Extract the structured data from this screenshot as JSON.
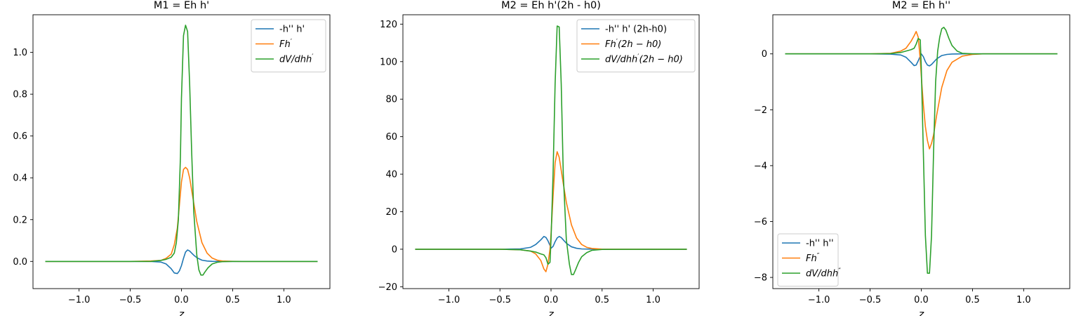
{
  "chart_data": [
    {
      "type": "line",
      "title": "M1 = Eh h'",
      "xlabel": "z",
      "ylabel": "",
      "xlim": [
        -1.45,
        1.45
      ],
      "ylim": [
        -0.13,
        1.18
      ],
      "xticks": [
        -1.0,
        -0.5,
        0.0,
        0.5,
        1.0
      ],
      "xtick_labels": [
        "−1.0",
        "−0.5",
        "0.0",
        "0.5",
        "1.0"
      ],
      "yticks": [
        0.0,
        0.2,
        0.4,
        0.6,
        0.8,
        1.0
      ],
      "ytick_labels": [
        "0.0",
        "0.2",
        "0.4",
        "0.6",
        "0.8",
        "1.0"
      ],
      "grid": false,
      "legend_position": "upper-right",
      "series": [
        {
          "name": "-h'' h'",
          "color": "#1f77b4",
          "x": [
            -1.33,
            -0.5,
            -0.3,
            -0.2,
            -0.15,
            -0.1,
            -0.07,
            -0.04,
            -0.02,
            0.0,
            0.02,
            0.04,
            0.06,
            0.08,
            0.1,
            0.12,
            0.15,
            0.2,
            0.25,
            0.3,
            0.4,
            0.5,
            1.33
          ],
          "y": [
            0,
            0,
            0,
            -0.003,
            -0.012,
            -0.035,
            -0.055,
            -0.058,
            -0.045,
            -0.02,
            0.015,
            0.045,
            0.055,
            0.05,
            0.04,
            0.03,
            0.018,
            0.006,
            0.002,
            0.0005,
            0,
            0,
            0
          ]
        },
        {
          "name": "Fh′",
          "name_display": {
            "base": "Fh",
            "sup": "′",
            "rest": ""
          },
          "color": "#ff7f0e",
          "x": [
            -1.33,
            -0.5,
            -0.3,
            -0.2,
            -0.15,
            -0.1,
            -0.07,
            -0.04,
            -0.02,
            0.0,
            0.02,
            0.04,
            0.06,
            0.08,
            0.1,
            0.12,
            0.15,
            0.2,
            0.25,
            0.3,
            0.35,
            0.4,
            0.5,
            0.6,
            1.33
          ],
          "y": [
            0,
            0,
            0.002,
            0.005,
            0.015,
            0.035,
            0.08,
            0.16,
            0.27,
            0.38,
            0.44,
            0.45,
            0.44,
            0.4,
            0.34,
            0.28,
            0.19,
            0.09,
            0.04,
            0.016,
            0.006,
            0.002,
            0.0005,
            0,
            0
          ]
        },
        {
          "name": "dV/dhh′",
          "name_display": {
            "base": "dV/dhh",
            "sup": "′",
            "rest": ""
          },
          "color": "#2ca02c",
          "x": [
            -1.33,
            -0.5,
            -0.3,
            -0.2,
            -0.15,
            -0.1,
            -0.07,
            -0.05,
            -0.03,
            -0.01,
            0.0,
            0.02,
            0.04,
            0.06,
            0.08,
            0.1,
            0.12,
            0.15,
            0.17,
            0.19,
            0.21,
            0.23,
            0.26,
            0.3,
            0.35,
            0.4,
            0.5,
            1.33
          ],
          "y": [
            0,
            0,
            0,
            0.005,
            0.01,
            0.02,
            0.04,
            0.09,
            0.2,
            0.5,
            0.78,
            1.08,
            1.13,
            1.1,
            0.85,
            0.52,
            0.24,
            0.03,
            -0.04,
            -0.065,
            -0.065,
            -0.05,
            -0.03,
            -0.012,
            -0.004,
            -0.001,
            0,
            0
          ]
        }
      ]
    },
    {
      "type": "line",
      "title": "M2 = Eh h'(2h - h0)",
      "xlabel": "z",
      "ylabel": "",
      "xlim": [
        -1.45,
        1.45
      ],
      "ylim": [
        -21,
        125
      ],
      "xticks": [
        -1.0,
        -0.5,
        0.0,
        0.5,
        1.0
      ],
      "xtick_labels": [
        "−1.0",
        "−0.5",
        "0.0",
        "0.5",
        "1.0"
      ],
      "yticks": [
        -20,
        0,
        20,
        40,
        60,
        80,
        100,
        120
      ],
      "ytick_labels": [
        "−20",
        "0",
        "20",
        "40",
        "60",
        "80",
        "100",
        "120"
      ],
      "grid": false,
      "legend_position": "upper-right",
      "series": [
        {
          "name": "-h'' h' (2h-h0)",
          "color": "#1f77b4",
          "x": [
            -1.33,
            -0.5,
            -0.3,
            -0.2,
            -0.15,
            -0.1,
            -0.07,
            -0.05,
            -0.03,
            -0.01,
            0.0,
            0.02,
            0.04,
            0.06,
            0.08,
            0.1,
            0.12,
            0.15,
            0.2,
            0.25,
            0.3,
            0.4,
            1.33
          ],
          "y": [
            0,
            0,
            0.2,
            1.0,
            2.5,
            5.0,
            6.8,
            6.3,
            4.5,
            2.0,
            0.5,
            1.5,
            4.0,
            6.0,
            6.8,
            6.2,
            5.0,
            3.2,
            1.3,
            0.5,
            0.15,
            0.02,
            0
          ]
        },
        {
          "name": "Fh′(2h − h0)",
          "name_display": {
            "base": "Fh",
            "sup": "′",
            "rest": "(2h − h0)"
          },
          "color": "#ff7f0e",
          "x": [
            -1.33,
            -0.5,
            -0.3,
            -0.2,
            -0.15,
            -0.1,
            -0.07,
            -0.05,
            -0.03,
            -0.01,
            0.0,
            0.02,
            0.04,
            0.06,
            0.08,
            0.1,
            0.12,
            0.15,
            0.2,
            0.25,
            0.3,
            0.35,
            0.4,
            0.5,
            0.6,
            1.33
          ],
          "y": [
            0,
            0,
            -0.3,
            -1.0,
            -2.5,
            -6.0,
            -10.5,
            -12.0,
            -8.0,
            0,
            8.0,
            28.0,
            46.0,
            52.0,
            49.0,
            42.0,
            35.0,
            25.0,
            13.0,
            6.0,
            2.5,
            1.0,
            0.4,
            0.05,
            0,
            0
          ]
        },
        {
          "name": "dV/dhh′(2h − h0)",
          "name_display": {
            "base": "dV/dhh",
            "sup": "′",
            "rest": "(2h − h0)"
          },
          "color": "#2ca02c",
          "x": [
            -1.33,
            -0.5,
            -0.3,
            -0.2,
            -0.15,
            -0.1,
            -0.07,
            -0.05,
            -0.03,
            -0.01,
            0.0,
            0.02,
            0.04,
            0.06,
            0.08,
            0.1,
            0.12,
            0.15,
            0.18,
            0.2,
            0.22,
            0.24,
            0.27,
            0.3,
            0.35,
            0.4,
            0.5,
            1.33
          ],
          "y": [
            0,
            0,
            -0.3,
            -1.0,
            -1.5,
            -2.5,
            -3.0,
            -4.5,
            -8.0,
            -7.0,
            5.0,
            40.0,
            88.0,
            119.0,
            118.5,
            88.0,
            40.0,
            5.0,
            -8.0,
            -13.5,
            -13.5,
            -11.0,
            -7.0,
            -4.0,
            -1.8,
            -0.6,
            -0.1,
            0
          ]
        }
      ]
    },
    {
      "type": "line",
      "title": "M2 = Eh h''",
      "xlabel": "z",
      "ylabel": "",
      "xlim": [
        -1.45,
        1.45
      ],
      "ylim": [
        -8.4,
        1.4
      ],
      "xticks": [
        -1.0,
        -0.5,
        0.0,
        0.5,
        1.0
      ],
      "xtick_labels": [
        "−1.0",
        "−0.5",
        "0.0",
        "0.5",
        "1.0"
      ],
      "yticks": [
        -8,
        -6,
        -4,
        -2,
        0
      ],
      "ytick_labels": [
        "−8",
        "−6",
        "−4",
        "−2",
        "0"
      ],
      "grid": false,
      "legend_position": "lower-left",
      "series": [
        {
          "name": "-h'' h''",
          "color": "#1f77b4",
          "x": [
            -1.33,
            -0.5,
            -0.3,
            -0.2,
            -0.15,
            -0.1,
            -0.07,
            -0.05,
            -0.03,
            -0.01,
            0.0,
            0.02,
            0.04,
            0.06,
            0.08,
            0.1,
            0.12,
            0.15,
            0.2,
            0.25,
            0.3,
            0.4,
            1.33
          ],
          "y": [
            0,
            0,
            -0.01,
            -0.04,
            -0.12,
            -0.3,
            -0.42,
            -0.4,
            -0.25,
            -0.08,
            0,
            -0.1,
            -0.28,
            -0.4,
            -0.43,
            -0.38,
            -0.3,
            -0.18,
            -0.06,
            -0.02,
            -0.005,
            0,
            0
          ]
        },
        {
          "name": "Fh″",
          "name_display": {
            "base": "Fh",
            "sup": "″",
            "rest": ""
          },
          "color": "#ff7f0e",
          "x": [
            -1.33,
            -0.5,
            -0.3,
            -0.2,
            -0.15,
            -0.1,
            -0.07,
            -0.05,
            -0.03,
            -0.01,
            0.0,
            0.02,
            0.04,
            0.06,
            0.08,
            0.1,
            0.12,
            0.15,
            0.2,
            0.25,
            0.3,
            0.4,
            0.5,
            0.6,
            1.33
          ],
          "y": [
            0,
            0,
            0.02,
            0.1,
            0.2,
            0.45,
            0.65,
            0.8,
            0.6,
            -0.2,
            -0.8,
            -1.8,
            -2.6,
            -3.1,
            -3.4,
            -3.2,
            -2.9,
            -2.2,
            -1.2,
            -0.6,
            -0.3,
            -0.08,
            -0.02,
            0,
            0
          ]
        },
        {
          "name": "dV/dhh″",
          "name_display": {
            "base": "dV/dhh",
            "sup": "″",
            "rest": ""
          },
          "color": "#2ca02c",
          "x": [
            -1.33,
            -0.5,
            -0.3,
            -0.2,
            -0.15,
            -0.1,
            -0.07,
            -0.05,
            -0.03,
            -0.01,
            0.0,
            0.02,
            0.04,
            0.06,
            0.08,
            0.1,
            0.12,
            0.14,
            0.16,
            0.18,
            0.2,
            0.22,
            0.24,
            0.27,
            0.3,
            0.35,
            0.4,
            0.5,
            1.33
          ],
          "y": [
            0,
            0,
            0.01,
            0.05,
            0.1,
            0.15,
            0.2,
            0.35,
            0.55,
            0.5,
            -0.5,
            -3.5,
            -6.5,
            -7.85,
            -7.85,
            -6.5,
            -3.5,
            -1.0,
            0.1,
            0.6,
            0.9,
            0.95,
            0.85,
            0.55,
            0.3,
            0.1,
            0.02,
            0,
            0
          ]
        }
      ]
    }
  ]
}
